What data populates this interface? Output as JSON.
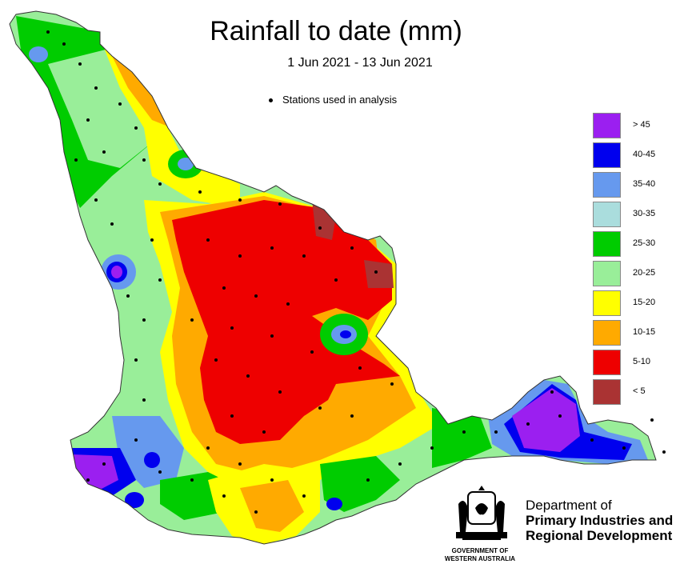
{
  "title": "Rainfall to date (mm)",
  "subtitle": "1 Jun 2021 - 13 Jun 2021",
  "station_note": "Stations used in analysis",
  "legend": [
    {
      "label": "> 45",
      "color": "#9b1ff0"
    },
    {
      "label": "40-45",
      "color": "#0000ee"
    },
    {
      "label": "35-40",
      "color": "#6699ee"
    },
    {
      "label": "30-35",
      "color": "#aadddd"
    },
    {
      "label": "25-30",
      "color": "#00cc00"
    },
    {
      "label": "20-25",
      "color": "#99ee99"
    },
    {
      "label": "15-20",
      "color": "#ffff00"
    },
    {
      "label": "10-15",
      "color": "#ffaa00"
    },
    {
      "label": "5-10",
      "color": "#ee0000"
    },
    {
      "label": "< 5",
      "color": "#aa3333"
    }
  ],
  "department": {
    "line1": "Department of",
    "line2": "Primary Industries and",
    "line3": "Regional Development"
  },
  "government": {
    "line1": "GOVERNMENT OF",
    "line2": "WESTERN AUSTRALIA"
  }
}
